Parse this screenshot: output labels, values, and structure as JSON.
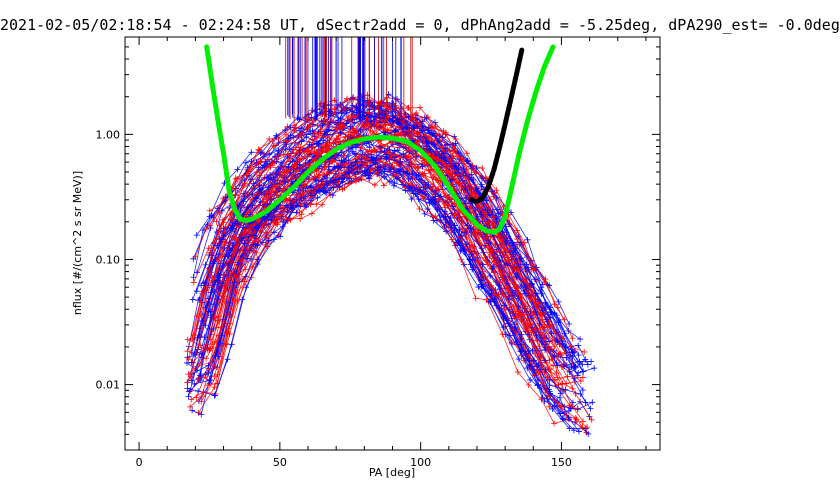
{
  "title": "2021-02-05/02:18:54 - 02:24:58 UT, dSectr2add = 0, dPhAng2add = -5.25deg, dPA290_est=  -0.0deg",
  "chart_data": {
    "type": "scatter",
    "xlabel": "PA [deg]",
    "ylabel": "nflux [#/(cm^2 s sr MeV)]",
    "xlim": [
      -5,
      185
    ],
    "ylim": [
      0.003,
      6.0
    ],
    "yscale": "log",
    "x_ticks": [
      0,
      50,
      100,
      150
    ],
    "x_tick_labels": [
      "0",
      "50",
      "100",
      "150"
    ],
    "y_ticks": [
      0.01,
      0.1,
      1.0
    ],
    "y_tick_labels": [
      "0.01",
      "0.10",
      "1.00"
    ],
    "grid": false,
    "series": [
      {
        "color": "#00ee00",
        "style": "thick-dashed",
        "x": [
          24,
          26,
          28,
          30,
          32,
          34,
          36,
          38,
          40,
          45,
          50,
          55,
          60,
          65,
          70,
          75,
          80,
          85,
          88,
          90,
          95,
          100,
          105,
          110,
          115,
          120,
          123,
          126,
          128,
          130,
          132,
          135,
          138,
          141,
          144,
          147
        ],
        "y": [
          5.0,
          2.5,
          1.3,
          0.7,
          0.35,
          0.25,
          0.21,
          0.205,
          0.21,
          0.24,
          0.3,
          0.38,
          0.5,
          0.63,
          0.76,
          0.86,
          0.92,
          0.95,
          0.94,
          0.93,
          0.88,
          0.74,
          0.56,
          0.38,
          0.25,
          0.19,
          0.17,
          0.165,
          0.175,
          0.22,
          0.35,
          0.7,
          1.3,
          2.2,
          3.5,
          5.0
        ]
      },
      {
        "color": "#000000",
        "style": "thick-dashed",
        "x": [
          118,
          120,
          122,
          124,
          126,
          128,
          130,
          132,
          134,
          136
        ],
        "y": [
          0.3,
          0.29,
          0.31,
          0.38,
          0.52,
          0.78,
          1.2,
          1.9,
          3.0,
          4.8
        ]
      },
      {
        "name": "",
        "color": "#0000ff",
        "style": "lines-plus",
        "x": [
          20,
          25,
          30,
          40,
          50,
          60,
          70,
          80,
          85,
          90,
          100,
          110,
          120,
          130,
          140,
          150,
          160
        ],
        "y": [
          0.01,
          0.03,
          0.09,
          0.22,
          0.38,
          0.55,
          0.75,
          0.9,
          0.95,
          0.93,
          0.72,
          0.45,
          0.22,
          0.09,
          0.035,
          0.014,
          0.008
        ]
      },
      {
        "name": "",
        "color": "#ff0000",
        "style": "lines-plus",
        "x": [
          20,
          25,
          30,
          40,
          50,
          60,
          70,
          80,
          85,
          90,
          100,
          110,
          120,
          130,
          140,
          150,
          155
        ],
        "y": [
          0.012,
          0.035,
          0.1,
          0.24,
          0.4,
          0.58,
          0.78,
          0.92,
          0.96,
          0.94,
          0.7,
          0.42,
          0.2,
          0.08,
          0.03,
          0.012,
          0.009
        ]
      }
    ]
  }
}
